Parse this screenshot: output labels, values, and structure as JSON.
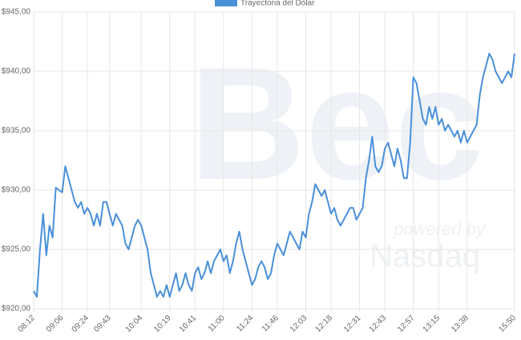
{
  "chart_data": {
    "type": "line",
    "categories": [
      "08:12",
      null,
      null,
      null,
      null,
      null,
      null,
      null,
      null,
      "09:06",
      null,
      null,
      null,
      null,
      null,
      null,
      null,
      "09:24",
      null,
      null,
      null,
      null,
      null,
      null,
      "09:43",
      null,
      null,
      null,
      null,
      null,
      null,
      null,
      null,
      null,
      "10:04",
      null,
      null,
      null,
      null,
      null,
      null,
      null,
      null,
      "10:19",
      null,
      null,
      null,
      null,
      null,
      null,
      null,
      "10:41",
      null,
      null,
      null,
      null,
      null,
      null,
      null,
      null,
      "11:00",
      null,
      null,
      null,
      null,
      null,
      null,
      null,
      null,
      "11:24",
      null,
      null,
      null,
      null,
      null,
      null,
      null,
      "11:46",
      null,
      null,
      null,
      null,
      null,
      null,
      null,
      null,
      "12:03",
      null,
      null,
      null,
      null,
      null,
      null,
      null,
      "12:18",
      null,
      null,
      null,
      null,
      null,
      null,
      null,
      null,
      "12:31",
      null,
      null,
      null,
      null,
      null,
      null,
      null,
      "12:43",
      null,
      null,
      null,
      null,
      null,
      null,
      null,
      null,
      "12:57",
      null,
      null,
      null,
      null,
      null,
      null,
      null,
      "13:15",
      null,
      null,
      null,
      null,
      null,
      null,
      null,
      null,
      "13:38",
      null,
      null,
      null,
      null,
      null,
      null,
      null,
      null,
      null,
      null,
      null,
      null,
      null,
      null,
      "15:50"
    ],
    "series": [
      {
        "name": "Trayectoria del Dólar",
        "color": "#4a90d9",
        "values": [
          921.5,
          921,
          925,
          928,
          924.5,
          927,
          926,
          930.2,
          930,
          929.8,
          932,
          931,
          930,
          929,
          928.5,
          929,
          928,
          928.5,
          928,
          927,
          928,
          927,
          929,
          929,
          928,
          927,
          928,
          927.5,
          927,
          925.5,
          925,
          926,
          927,
          927.5,
          927,
          926,
          925,
          923,
          922,
          921,
          921.5,
          921,
          922,
          921,
          922,
          923,
          921.5,
          922,
          923,
          922,
          921.5,
          923,
          923.5,
          922.5,
          923,
          924,
          923,
          924,
          924.5,
          925,
          924,
          924.5,
          923,
          924,
          925.5,
          926.5,
          925,
          924,
          923,
          922,
          922.5,
          923.5,
          924,
          923.5,
          922.5,
          923,
          924.5,
          925.5,
          925,
          924.5,
          925.5,
          926.5,
          926,
          925.5,
          925,
          926.5,
          926,
          928,
          929,
          930.5,
          930,
          929.5,
          930,
          929,
          928,
          928.5,
          927.5,
          927,
          927.5,
          928,
          928.5,
          928.5,
          927.5,
          928,
          928.5,
          931,
          932.5,
          934.5,
          932,
          931.5,
          932,
          933.5,
          934,
          933,
          932,
          933.5,
          932.5,
          931,
          931,
          934,
          939.5,
          939,
          937.5,
          936,
          935.5,
          937,
          936,
          937,
          935.5,
          936,
          935,
          935.5,
          935,
          934.5,
          935,
          934,
          935,
          934,
          934.5,
          935,
          935.5,
          938,
          939.5,
          940.5,
          941.5,
          941,
          940,
          939.5,
          939,
          939.5,
          940,
          939.5,
          941.5
        ]
      }
    ],
    "ylim": [
      920,
      945
    ],
    "yticks": [
      {
        "value": 920,
        "label": "$920,00"
      },
      {
        "value": 925,
        "label": "$925,00"
      },
      {
        "value": 930,
        "label": "$930,00"
      },
      {
        "value": 935,
        "label": "$935,00"
      },
      {
        "value": 940,
        "label": "$940,00"
      },
      {
        "value": 945,
        "label": "$945,00"
      }
    ],
    "grid": true,
    "legend": "top"
  },
  "watermark": {
    "logo": "Bec",
    "powered": "powered by",
    "brand": "Nasdaq"
  }
}
